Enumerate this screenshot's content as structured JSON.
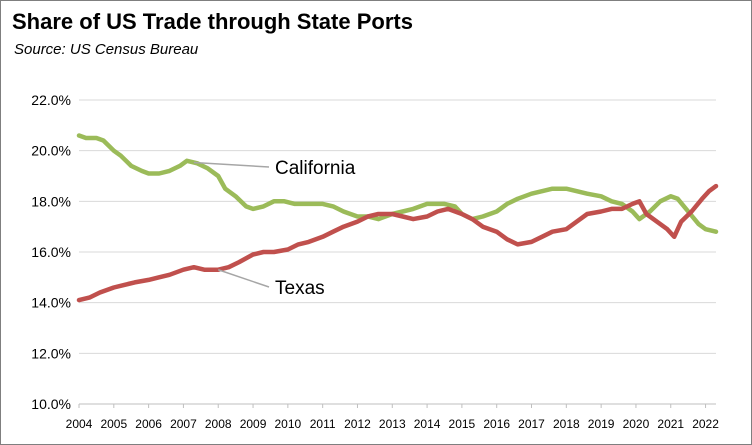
{
  "header": {
    "title": "Share of US Trade through State Ports",
    "subtitle": "Source:  US Census Bureau"
  },
  "chart_data": {
    "type": "line",
    "title": "Share of US Trade through State Ports",
    "subtitle": "Source:  US Census Bureau",
    "xlabel": "",
    "ylabel": "",
    "xlim": [
      2004,
      2022.3
    ],
    "ylim": [
      10,
      22
    ],
    "x_ticks": [
      "2004",
      "2005",
      "2006",
      "2007",
      "2008",
      "2009",
      "2010",
      "2011",
      "2012",
      "2013",
      "2014",
      "2015",
      "2016",
      "2017",
      "2018",
      "2019",
      "2020",
      "2021",
      "2022"
    ],
    "y_ticks": [
      "10.0%",
      "12.0%",
      "14.0%",
      "16.0%",
      "18.0%",
      "20.0%",
      "22.0%"
    ],
    "y_tick_values": [
      10,
      12,
      14,
      16,
      18,
      20,
      22
    ],
    "grid": "horizontal",
    "legend": "none (direct labels)",
    "series": [
      {
        "name": "California",
        "color": "#9bbb59",
        "points": [
          [
            2004.0,
            20.6
          ],
          [
            2004.2,
            20.5
          ],
          [
            2004.5,
            20.5
          ],
          [
            2004.7,
            20.4
          ],
          [
            2005.0,
            20.0
          ],
          [
            2005.2,
            19.8
          ],
          [
            2005.5,
            19.4
          ],
          [
            2005.8,
            19.2
          ],
          [
            2006.0,
            19.1
          ],
          [
            2006.3,
            19.1
          ],
          [
            2006.6,
            19.2
          ],
          [
            2006.9,
            19.4
          ],
          [
            2007.1,
            19.6
          ],
          [
            2007.4,
            19.5
          ],
          [
            2007.7,
            19.3
          ],
          [
            2008.0,
            19.0
          ],
          [
            2008.2,
            18.5
          ],
          [
            2008.5,
            18.2
          ],
          [
            2008.8,
            17.8
          ],
          [
            2009.0,
            17.7
          ],
          [
            2009.3,
            17.8
          ],
          [
            2009.6,
            18.0
          ],
          [
            2009.9,
            18.0
          ],
          [
            2010.2,
            17.9
          ],
          [
            2010.5,
            17.9
          ],
          [
            2010.8,
            17.9
          ],
          [
            2011.0,
            17.9
          ],
          [
            2011.3,
            17.8
          ],
          [
            2011.6,
            17.6
          ],
          [
            2012.0,
            17.4
          ],
          [
            2012.3,
            17.4
          ],
          [
            2012.6,
            17.3
          ],
          [
            2013.0,
            17.5
          ],
          [
            2013.3,
            17.6
          ],
          [
            2013.6,
            17.7
          ],
          [
            2014.0,
            17.9
          ],
          [
            2014.3,
            17.9
          ],
          [
            2014.5,
            17.9
          ],
          [
            2014.8,
            17.8
          ],
          [
            2015.0,
            17.5
          ],
          [
            2015.3,
            17.3
          ],
          [
            2015.6,
            17.4
          ],
          [
            2016.0,
            17.6
          ],
          [
            2016.3,
            17.9
          ],
          [
            2016.6,
            18.1
          ],
          [
            2017.0,
            18.3
          ],
          [
            2017.3,
            18.4
          ],
          [
            2017.6,
            18.5
          ],
          [
            2018.0,
            18.5
          ],
          [
            2018.3,
            18.4
          ],
          [
            2018.6,
            18.3
          ],
          [
            2019.0,
            18.2
          ],
          [
            2019.3,
            18.0
          ],
          [
            2019.6,
            17.9
          ],
          [
            2019.9,
            17.6
          ],
          [
            2020.1,
            17.3
          ],
          [
            2020.4,
            17.6
          ],
          [
            2020.7,
            18.0
          ],
          [
            2021.0,
            18.2
          ],
          [
            2021.2,
            18.1
          ],
          [
            2021.5,
            17.6
          ],
          [
            2021.8,
            17.1
          ],
          [
            2022.0,
            16.9
          ],
          [
            2022.3,
            16.8
          ]
        ]
      },
      {
        "name": "Texas",
        "color": "#c0504d",
        "points": [
          [
            2004.0,
            14.1
          ],
          [
            2004.3,
            14.2
          ],
          [
            2004.6,
            14.4
          ],
          [
            2005.0,
            14.6
          ],
          [
            2005.3,
            14.7
          ],
          [
            2005.6,
            14.8
          ],
          [
            2006.0,
            14.9
          ],
          [
            2006.3,
            15.0
          ],
          [
            2006.6,
            15.1
          ],
          [
            2007.0,
            15.3
          ],
          [
            2007.3,
            15.4
          ],
          [
            2007.6,
            15.3
          ],
          [
            2008.0,
            15.3
          ],
          [
            2008.3,
            15.4
          ],
          [
            2008.6,
            15.6
          ],
          [
            2009.0,
            15.9
          ],
          [
            2009.3,
            16.0
          ],
          [
            2009.6,
            16.0
          ],
          [
            2010.0,
            16.1
          ],
          [
            2010.3,
            16.3
          ],
          [
            2010.6,
            16.4
          ],
          [
            2011.0,
            16.6
          ],
          [
            2011.3,
            16.8
          ],
          [
            2011.6,
            17.0
          ],
          [
            2012.0,
            17.2
          ],
          [
            2012.3,
            17.4
          ],
          [
            2012.6,
            17.5
          ],
          [
            2013.0,
            17.5
          ],
          [
            2013.3,
            17.4
          ],
          [
            2013.6,
            17.3
          ],
          [
            2014.0,
            17.4
          ],
          [
            2014.3,
            17.6
          ],
          [
            2014.6,
            17.7
          ],
          [
            2015.0,
            17.5
          ],
          [
            2015.3,
            17.3
          ],
          [
            2015.6,
            17.0
          ],
          [
            2016.0,
            16.8
          ],
          [
            2016.3,
            16.5
          ],
          [
            2016.6,
            16.3
          ],
          [
            2017.0,
            16.4
          ],
          [
            2017.3,
            16.6
          ],
          [
            2017.6,
            16.8
          ],
          [
            2018.0,
            16.9
          ],
          [
            2018.3,
            17.2
          ],
          [
            2018.6,
            17.5
          ],
          [
            2019.0,
            17.6
          ],
          [
            2019.3,
            17.7
          ],
          [
            2019.6,
            17.7
          ],
          [
            2019.9,
            17.9
          ],
          [
            2020.1,
            18.0
          ],
          [
            2020.3,
            17.5
          ],
          [
            2020.6,
            17.2
          ],
          [
            2020.9,
            16.9
          ],
          [
            2021.1,
            16.6
          ],
          [
            2021.3,
            17.2
          ],
          [
            2021.6,
            17.6
          ],
          [
            2021.9,
            18.1
          ],
          [
            2022.1,
            18.4
          ],
          [
            2022.3,
            18.6
          ]
        ]
      }
    ],
    "annotations": [
      {
        "text": "California",
        "series": "California",
        "at_x": 2007.3
      },
      {
        "text": "Texas",
        "series": "Texas",
        "at_x": 2008.0
      }
    ]
  }
}
